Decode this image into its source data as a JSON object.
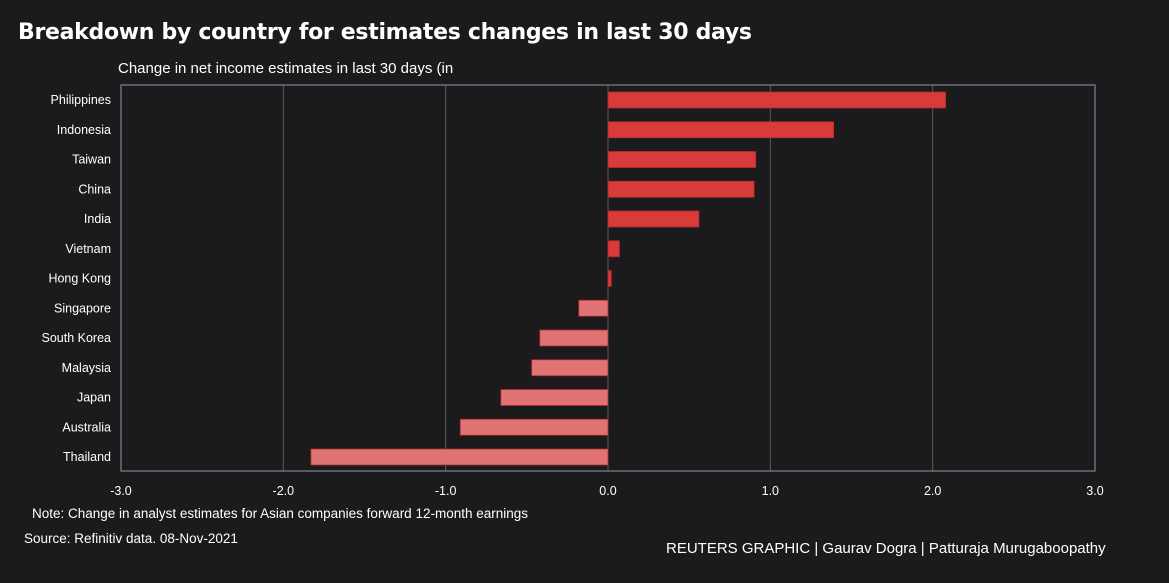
{
  "header": {
    "title": "Breakdown by country for estimates changes in last 30 days",
    "subtitle": "Change in net income estimates in last 30 days (in"
  },
  "footer": {
    "note": "Note: Change in analyst estimates for Asian companies forward 12-month earnings",
    "source": "Source: Refinitiv data. 08-Nov-2021",
    "credit": "REUTERS GRAPHIC | Gaurav Dogra | Patturaja Murugaboopathy"
  },
  "chart_data": {
    "type": "bar",
    "orientation": "horizontal",
    "title": "Breakdown by country for estimates changes in last 30 days",
    "subtitle": "Change in net income estimates in last 30 days (in",
    "categories": [
      "Philippines",
      "Indonesia",
      "Taiwan",
      "China",
      "India",
      "Vietnam",
      "Hong Kong",
      "Singapore",
      "South Korea",
      "Malaysia",
      "Japan",
      "Australia",
      "Thailand"
    ],
    "values": [
      2.08,
      1.39,
      0.91,
      0.9,
      0.56,
      0.07,
      0.02,
      -0.18,
      -0.42,
      -0.47,
      -0.66,
      -0.91,
      -1.83
    ],
    "xlim": [
      -3.0,
      3.0
    ],
    "xticks": [
      "-3.0",
      "-2.0",
      "-1.0",
      "0.0",
      "1.0",
      "2.0",
      "3.0"
    ],
    "xtick_values": [
      -3,
      -2,
      -1,
      0,
      1,
      2,
      3
    ],
    "xlabel": "",
    "ylabel": "",
    "grid": "vertical",
    "legend": "none",
    "colors": {
      "positive": "#d93a3a",
      "negative": "#e07474",
      "background": "#1b1b1d",
      "grid": "#5a5a5e",
      "axis": "#9a9a9e",
      "text": "#ffffff"
    }
  }
}
